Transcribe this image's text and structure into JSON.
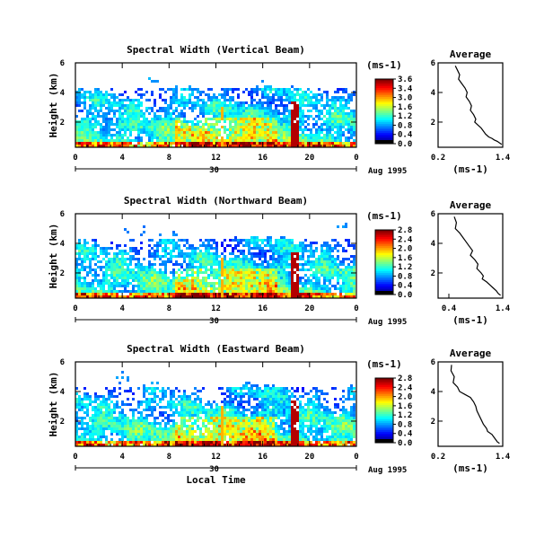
{
  "chart_data": [
    {
      "type": "heatmap",
      "title": "Spectral Width (Vertical Beam)",
      "ylabel": "Height (km)",
      "xlabel": "",
      "x_ticks": [
        "0",
        "4",
        "8",
        "12",
        "16",
        "20",
        "0"
      ],
      "y_ticks": [
        "6",
        "4",
        "2"
      ],
      "xlim": [
        0,
        24
      ],
      "ylim": [
        0.3,
        6
      ],
      "date_axis": {
        "day": "30",
        "date": "Aug 1995"
      },
      "colorbar": {
        "unit": "(ms-1)",
        "ticks": [
          "3.6",
          "3.4",
          "3.0",
          "1.6",
          "1.2",
          "0.8",
          "0.4",
          "0.0"
        ]
      },
      "average": {
        "title": "Average",
        "xlabel": "(ms-1)",
        "x_ticks": [
          "0.2",
          "1.4"
        ],
        "y_ticks": [
          "6",
          "4",
          "2"
        ],
        "xlim": [
          0.2,
          1.4
        ],
        "ylim": [
          0.3,
          6
        ],
        "x": [
          0.52,
          0.56,
          0.6,
          0.58,
          0.64,
          0.7,
          0.74,
          0.72,
          0.78,
          0.82,
          0.8,
          0.86,
          0.9,
          0.88,
          0.94,
          1.0,
          1.04,
          1.08,
          1.14,
          1.2,
          1.24,
          1.3,
          1.34,
          1.38
        ],
        "y": [
          5.8,
          5.5,
          5.2,
          4.9,
          4.6,
          4.3,
          4.0,
          3.7,
          3.4,
          3.1,
          2.8,
          2.5,
          2.2,
          2.0,
          1.8,
          1.6,
          1.4,
          1.2,
          1.0,
          0.9,
          0.8,
          0.7,
          0.6,
          0.5
        ]
      }
    },
    {
      "type": "heatmap",
      "title": "Spectral Width (Northward Beam)",
      "ylabel": "Height (km)",
      "xlabel": "",
      "x_ticks": [
        "0",
        "4",
        "8",
        "12",
        "16",
        "20",
        "0"
      ],
      "y_ticks": [
        "6",
        "4",
        "2"
      ],
      "xlim": [
        0,
        24
      ],
      "ylim": [
        0.3,
        6
      ],
      "date_axis": {
        "day": "30",
        "date": "Aug 1995"
      },
      "colorbar": {
        "unit": "(ms-1)",
        "ticks": [
          "2.8",
          "2.4",
          "2.0",
          "1.6",
          "1.2",
          "0.8",
          "0.4",
          "0.0"
        ]
      },
      "average": {
        "title": "Average",
        "xlabel": "(ms-1)",
        "x_ticks": [
          "0.4",
          "1.4"
        ],
        "y_ticks": [
          "6",
          "4",
          "2"
        ],
        "xlim": [
          0.2,
          1.4
        ],
        "ylim": [
          0.3,
          6
        ],
        "x": [
          0.5,
          0.54,
          0.52,
          0.6,
          0.66,
          0.72,
          0.78,
          0.84,
          0.8,
          0.88,
          0.94,
          0.92,
          1.0,
          1.04,
          1.02,
          1.1,
          1.16,
          1.22,
          1.28,
          1.32,
          1.36
        ],
        "y": [
          5.8,
          5.4,
          5.0,
          4.7,
          4.4,
          4.1,
          3.8,
          3.5,
          3.2,
          2.9,
          2.6,
          2.3,
          2.0,
          1.8,
          1.6,
          1.4,
          1.2,
          1.0,
          0.8,
          0.6,
          0.5
        ]
      }
    },
    {
      "type": "heatmap",
      "title": "Spectral Width (Eastward Beam)",
      "ylabel": "Height (km)",
      "xlabel": "Local Time",
      "x_ticks": [
        "0",
        "4",
        "8",
        "12",
        "16",
        "20",
        "0"
      ],
      "y_ticks": [
        "6",
        "4",
        "2"
      ],
      "xlim": [
        0,
        24
      ],
      "ylim": [
        0.3,
        6
      ],
      "date_axis": {
        "day": "30",
        "date": "Aug 1995"
      },
      "colorbar": {
        "unit": "(ms-1)",
        "ticks": [
          "2.8",
          "2.4",
          "2.0",
          "1.6",
          "1.2",
          "0.8",
          "0.4",
          "0.0"
        ]
      },
      "average": {
        "title": "Average",
        "xlabel": "(ms-1)",
        "x_ticks": [
          "0.2",
          "1.4"
        ],
        "y_ticks": [
          "6",
          "4",
          "2"
        ],
        "xlim": [
          0.2,
          1.4
        ],
        "ylim": [
          0.3,
          6
        ],
        "x": [
          0.45,
          0.44,
          0.5,
          0.48,
          0.56,
          0.6,
          0.7,
          0.8,
          0.86,
          0.9,
          0.92,
          0.96,
          1.0,
          1.04,
          1.1,
          1.12,
          1.2,
          1.24,
          1.28,
          1.3,
          1.34
        ],
        "y": [
          5.8,
          5.4,
          5.0,
          4.6,
          4.3,
          4.0,
          3.8,
          3.6,
          3.3,
          3.0,
          2.7,
          2.4,
          2.1,
          1.8,
          1.5,
          1.3,
          1.1,
          0.9,
          0.7,
          0.6,
          0.5
        ]
      }
    }
  ]
}
